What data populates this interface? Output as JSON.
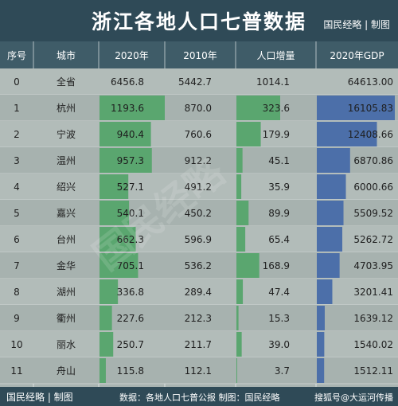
{
  "header": {
    "title": "浙江各地人口七普数据",
    "brand": "国民经略 | 制图"
  },
  "footer": {
    "brand": "国民经略 | 制图",
    "source": "数据：各地人口七普公报    制图：国民经略",
    "credit": "搜狐号@大运河传播"
  },
  "watermark": "国民经略",
  "colors": {
    "header_bg": "#2f4a57",
    "green_bar": "#5aa66f",
    "blue_bar": "#4c6fa9",
    "row_bg": "#b2bcb9",
    "row_bg_alt": "#a7b2af"
  },
  "chart_data": {
    "type": "table",
    "columns": [
      "序号",
      "城市",
      "2020年",
      "2010年",
      "人口增量",
      "2020年GDP"
    ],
    "rows": [
      {
        "index": "0",
        "city": "全省",
        "pop2020": 6456.8,
        "pop2010": 5442.7,
        "increase": 1014.1,
        "gdp2020": 64613.0
      },
      {
        "index": "1",
        "city": "杭州",
        "pop2020": 1193.6,
        "pop2010": 870.0,
        "increase": 323.6,
        "gdp2020": 16105.83
      },
      {
        "index": "2",
        "city": "宁波",
        "pop2020": 940.4,
        "pop2010": 760.6,
        "increase": 179.9,
        "gdp2020": 12408.66
      },
      {
        "index": "3",
        "city": "温州",
        "pop2020": 957.3,
        "pop2010": 912.2,
        "increase": 45.1,
        "gdp2020": 6870.86
      },
      {
        "index": "4",
        "city": "绍兴",
        "pop2020": 527.1,
        "pop2010": 491.2,
        "increase": 35.9,
        "gdp2020": 6000.66
      },
      {
        "index": "5",
        "city": "嘉兴",
        "pop2020": 540.1,
        "pop2010": 450.2,
        "increase": 89.9,
        "gdp2020": 5509.52
      },
      {
        "index": "6",
        "city": "台州",
        "pop2020": 662.3,
        "pop2010": 596.9,
        "increase": 65.4,
        "gdp2020": 5262.72
      },
      {
        "index": "7",
        "city": "金华",
        "pop2020": 705.1,
        "pop2010": 536.2,
        "increase": 168.9,
        "gdp2020": 4703.95
      },
      {
        "index": "8",
        "city": "湖州",
        "pop2020": 336.8,
        "pop2010": 289.4,
        "increase": 47.4,
        "gdp2020": 3201.41
      },
      {
        "index": "9",
        "city": "衢州",
        "pop2020": 227.6,
        "pop2010": 212.3,
        "increase": 15.3,
        "gdp2020": 1639.12
      },
      {
        "index": "10",
        "city": "丽水",
        "pop2020": 250.7,
        "pop2010": 211.7,
        "increase": 39.0,
        "gdp2020": 1540.02
      },
      {
        "index": "11",
        "city": "舟山",
        "pop2020": 115.8,
        "pop2010": 112.1,
        "increase": 3.7,
        "gdp2020": 1512.11
      }
    ],
    "bar_columns": [
      "2020年",
      "人口增量",
      "2020年GDP"
    ]
  }
}
